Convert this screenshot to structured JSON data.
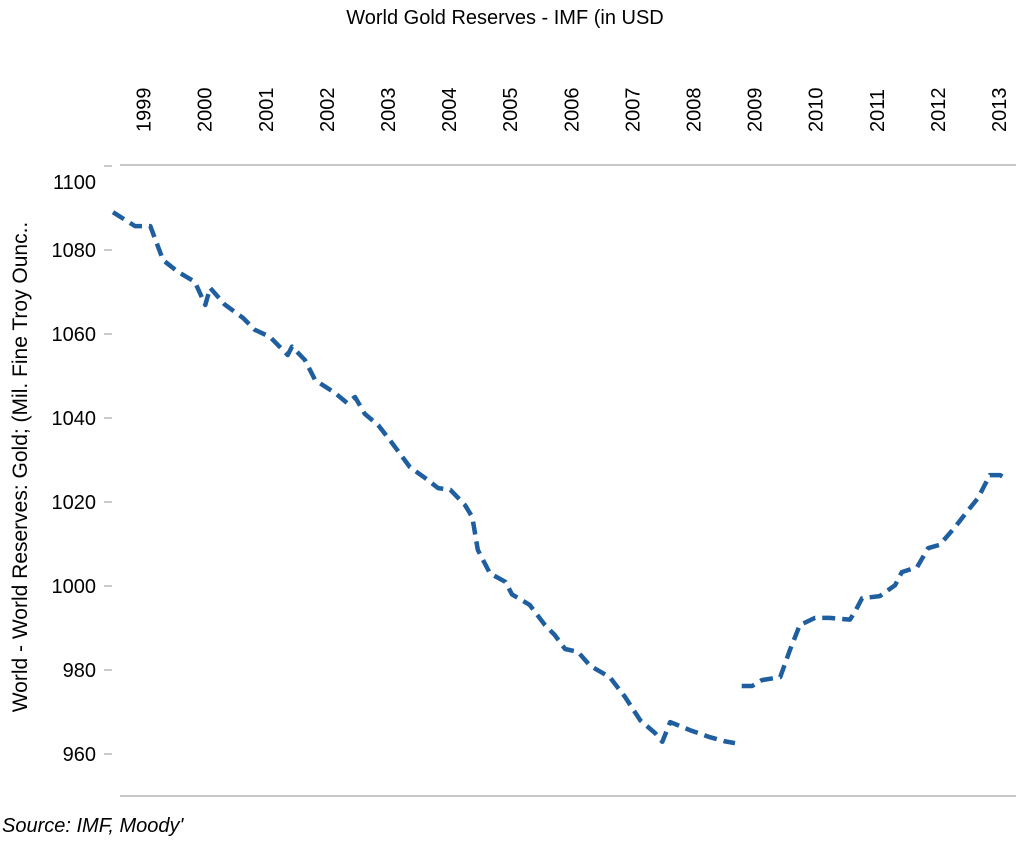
{
  "chart_data": {
    "type": "line",
    "title": "World Gold Reserves - IMF (in USD",
    "ylabel": "World -  World Reserves: Gold; (Mil. Fine Troy Ounc..",
    "xlabel": "",
    "source": "Source: IMF, Moody'",
    "x_tick_labels": [
      "1999",
      "2000",
      "2001",
      "2002",
      "2003",
      "2004",
      "2005",
      "2006",
      "2007",
      "2008",
      "2009",
      "2010",
      "2011",
      "2012",
      "2013"
    ],
    "y_tick_labels": [
      "1100",
      "1080",
      "1060",
      "1040",
      "1020",
      "1000",
      "980",
      "960"
    ],
    "y_ticks": [
      1100,
      1080,
      1060,
      1040,
      1020,
      1000,
      980,
      960
    ],
    "ylim": [
      950,
      1100
    ],
    "xlim": [
      1999.0,
      2013.7
    ],
    "grid": false,
    "line_style": "dashed",
    "color": "#1f5fa0",
    "series": [
      {
        "points": [
          [
            1999.0,
            1089
          ],
          [
            1999.36,
            1085.7
          ],
          [
            1999.61,
            1085.7
          ],
          [
            1999.82,
            1077.6
          ],
          [
            2000.06,
            1074.8
          ],
          [
            2000.34,
            1072.4
          ],
          [
            2000.51,
            1066.9
          ],
          [
            2000.59,
            1071
          ],
          [
            2000.83,
            1067
          ],
          [
            2001.13,
            1063.8
          ],
          [
            2001.32,
            1061
          ],
          [
            2001.57,
            1059.3
          ],
          [
            2001.86,
            1055
          ],
          [
            2001.93,
            1057
          ],
          [
            2002.14,
            1053.8
          ],
          [
            2002.31,
            1049
          ],
          [
            2002.63,
            1046
          ],
          [
            2002.83,
            1043.6
          ],
          [
            2002.96,
            1045
          ],
          [
            2003.12,
            1041
          ],
          [
            2003.34,
            1038.3
          ],
          [
            2003.57,
            1034
          ],
          [
            2003.86,
            1028.3
          ],
          [
            2004.11,
            1025.7
          ],
          [
            2004.32,
            1023.3
          ],
          [
            2004.52,
            1022.9
          ],
          [
            2004.76,
            1019.3
          ],
          [
            2004.88,
            1016.4
          ],
          [
            2004.97,
            1008.6
          ],
          [
            2005.17,
            1003
          ],
          [
            2005.42,
            1001
          ],
          [
            2005.53,
            998
          ],
          [
            2005.82,
            995.5
          ],
          [
            2006.07,
            990.7
          ],
          [
            2006.23,
            988.3
          ],
          [
            2006.4,
            985
          ],
          [
            2006.61,
            984.3
          ],
          [
            2006.81,
            981
          ],
          [
            2007.13,
            978.3
          ],
          [
            2007.38,
            973.6
          ],
          [
            2007.63,
            968
          ],
          [
            2007.87,
            965
          ],
          [
            2007.99,
            962.9
          ],
          [
            2008.12,
            967.6
          ],
          [
            2008.44,
            965.7
          ],
          [
            2008.77,
            964
          ],
          [
            2009.02,
            963
          ],
          [
            2009.18,
            962.6
          ]
        ]
      },
      {
        "points": [
          [
            2009.29,
            976.2
          ],
          [
            2009.46,
            976.2
          ],
          [
            2009.62,
            977.6
          ],
          [
            2009.92,
            978.3
          ],
          [
            2010.08,
            984.8
          ],
          [
            2010.24,
            990.7
          ],
          [
            2010.49,
            992.4
          ],
          [
            2010.73,
            992.4
          ],
          [
            2011.06,
            992
          ],
          [
            2011.14,
            993.8
          ],
          [
            2011.26,
            997.1
          ],
          [
            2011.55,
            997.6
          ],
          [
            2011.8,
            1000.2
          ],
          [
            2011.91,
            1003.3
          ],
          [
            2012.16,
            1004.5
          ],
          [
            2012.34,
            1009
          ],
          [
            2012.53,
            1009.8
          ],
          [
            2012.78,
            1014
          ],
          [
            2012.94,
            1017
          ],
          [
            2013.16,
            1021
          ],
          [
            2013.35,
            1026.4
          ],
          [
            2013.52,
            1026.4
          ],
          [
            2013.65,
            1025.2
          ]
        ]
      }
    ]
  }
}
